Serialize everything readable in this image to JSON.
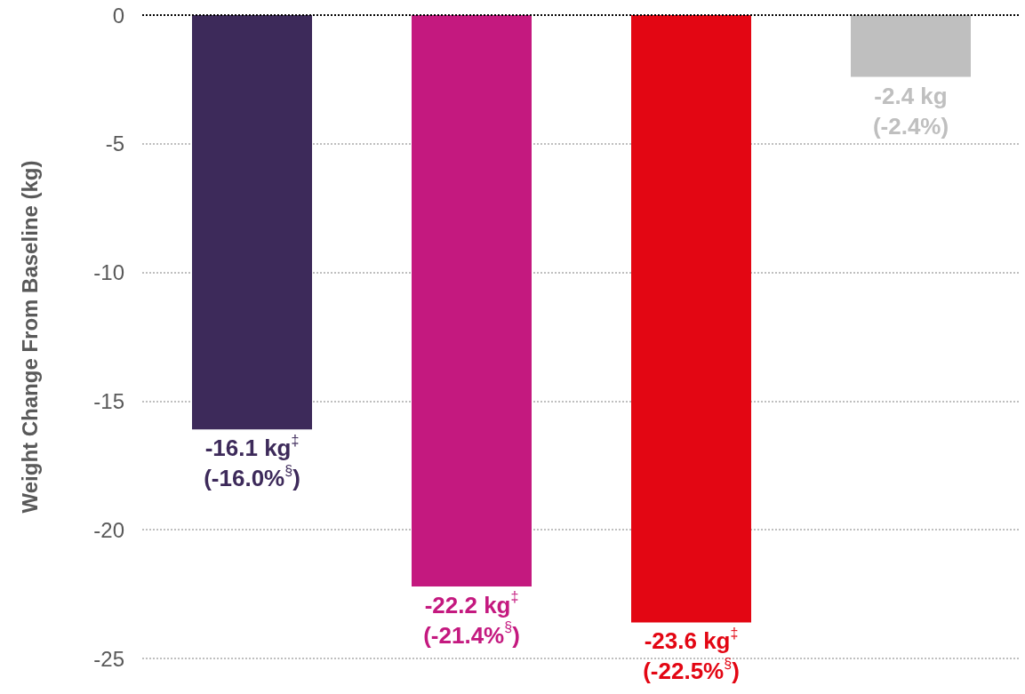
{
  "chart_data": {
    "type": "bar",
    "ylabel": "Weight Change From Baseline (kg)",
    "categories": [
      null,
      null,
      null,
      null
    ],
    "values": [
      -16.1,
      -22.2,
      -23.6,
      -2.4
    ],
    "colors": [
      "#3d2a5a",
      "#c4197f",
      "#e30613",
      "#bfbfbf"
    ],
    "value_labels": [
      "-16.1 kg$^{‡}$\n(-16.0%$^{§}$)",
      "-22.2 kg$^{‡}$\n(-21.4%$^{§}$)",
      "-23.6 kg$^{‡}$\n(-22.5%$^{§}$)",
      "-2.4 kg\n(-2.4%)"
    ],
    "ylim": [
      -25,
      0
    ],
    "yticks": [
      0,
      -5,
      -10,
      -15,
      -20,
      -25
    ],
    "grid": "y",
    "ref_lines": [
      {
        "axis": "y",
        "value": 0,
        "color": "#000000",
        "line_style": "dotted"
      }
    ]
  }
}
